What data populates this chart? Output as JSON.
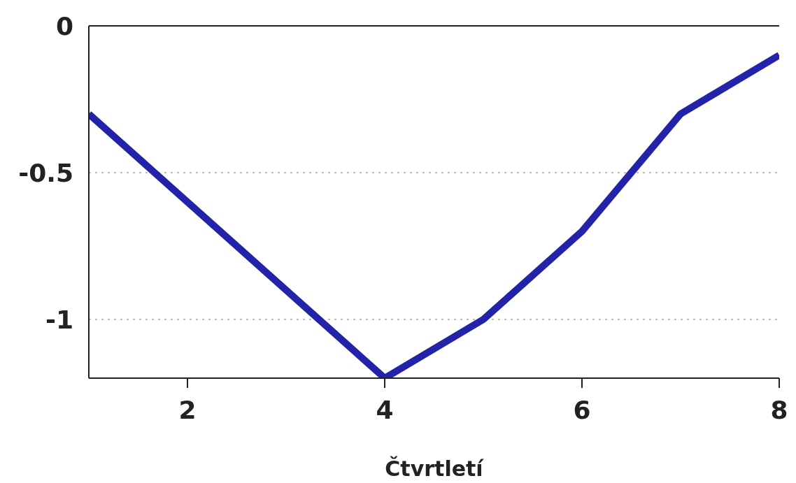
{
  "chart_data": {
    "type": "line",
    "xlabel": "Čtvrtletí",
    "x": [
      1,
      2,
      3,
      4,
      5,
      6,
      7,
      8
    ],
    "series": [
      {
        "color": "#2323aa",
        "values": [
          -0.3,
          -0.6,
          -0.9,
          -1.2,
          -1.0,
          -0.7,
          -0.3,
          -0.1
        ]
      }
    ],
    "xlim": [
      1,
      8
    ],
    "xticks": [
      2,
      4,
      6,
      8
    ],
    "ylim": [
      -1.2,
      0
    ],
    "yticks": [
      0,
      -0.5,
      -1
    ],
    "grid": "y",
    "marker": "none",
    "line_style": "solid"
  }
}
